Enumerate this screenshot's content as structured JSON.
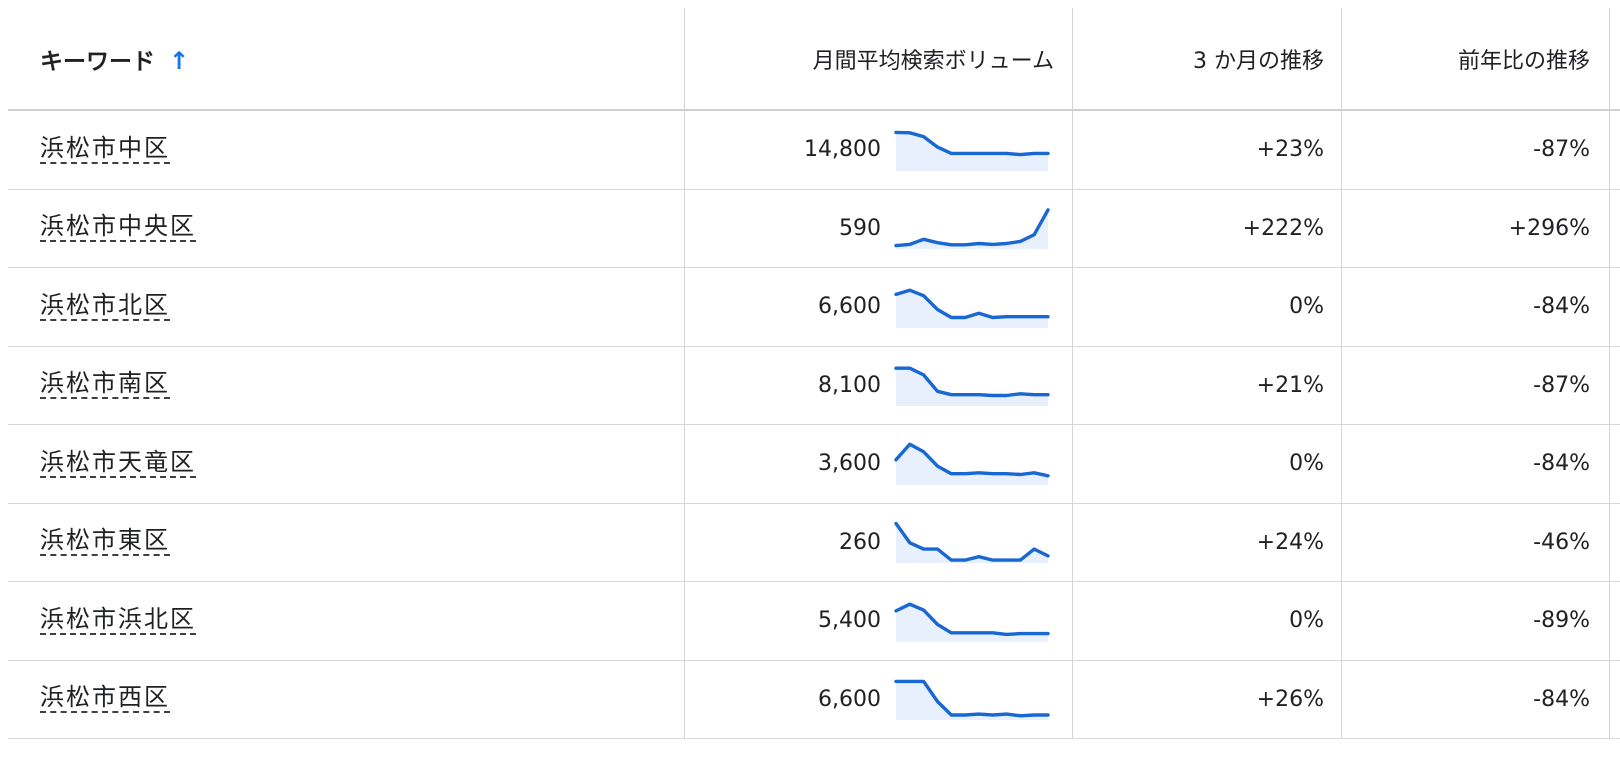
{
  "table": {
    "headers": {
      "keyword": "キーワード",
      "sort_arrow": "↑",
      "monthly_volume": "月間平均検索ボリューム",
      "three_month_change": "3 か月の推移",
      "yoy_change": "前年比の推移"
    },
    "rows": [
      {
        "keyword": "浜松市中区",
        "volume": "14,800",
        "three_month": "+23%",
        "yoy": "-87%",
        "trend": [
          92,
          91,
          82,
          57,
          42,
          42,
          42,
          42,
          42,
          39,
          42,
          42
        ]
      },
      {
        "keyword": "浜松市中央区",
        "volume": "590",
        "three_month": "+222%",
        "yoy": "+296%",
        "trend": [
          8,
          11,
          23,
          15,
          10,
          10,
          13,
          11,
          13,
          18,
          34,
          93
        ]
      },
      {
        "keyword": "浜松市北区",
        "volume": "6,600",
        "three_month": "0%",
        "yoy": "-84%",
        "trend": [
          80,
          90,
          77,
          44,
          25,
          25,
          35,
          25,
          27,
          27,
          27,
          27
        ]
      },
      {
        "keyword": "浜松市南区",
        "volume": "8,100",
        "three_month": "+21%",
        "yoy": "-87%",
        "trend": [
          90,
          90,
          74,
          35,
          27,
          27,
          27,
          25,
          25,
          29,
          27,
          27
        ]
      },
      {
        "keyword": "浜松市天竜区",
        "volume": "3,600",
        "three_month": "0%",
        "yoy": "-84%",
        "trend": [
          60,
          97,
          79,
          45,
          27,
          27,
          29,
          27,
          27,
          25,
          29,
          22
        ]
      },
      {
        "keyword": "浜松市東区",
        "volume": "260",
        "three_month": "+24%",
        "yoy": "-46%",
        "trend": [
          94,
          48,
          33,
          33,
          7,
          7,
          15,
          7,
          7,
          7,
          33,
          17
        ]
      },
      {
        "keyword": "浜松市浜北区",
        "volume": "5,400",
        "three_month": "0%",
        "yoy": "-89%",
        "trend": [
          74,
          90,
          76,
          42,
          22,
          22,
          22,
          22,
          18,
          20,
          20,
          20
        ]
      },
      {
        "keyword": "浜松市西区",
        "volume": "6,600",
        "three_month": "+26%",
        "yoy": "-84%",
        "trend": [
          92,
          92,
          92,
          44,
          12,
          12,
          14,
          12,
          14,
          10,
          12,
          12
        ]
      }
    ]
  },
  "colors": {
    "sparkline_line": "#1967d2",
    "sparkline_fill": "#e8f0fe",
    "sort_arrow": "#1a73e8"
  }
}
